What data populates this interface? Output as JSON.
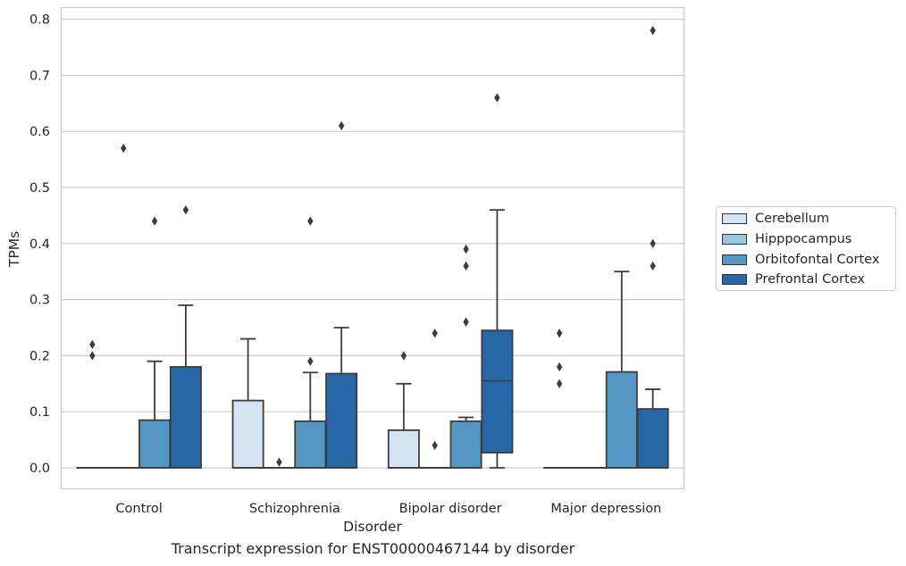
{
  "caption": "Transcript expression for ENST00000467144 by disorder",
  "chart_data": {
    "type": "box",
    "xlabel": "Disorder",
    "ylabel": "TPMs",
    "ylim": [
      -0.04,
      0.82
    ],
    "yticks": [
      0.0,
      0.1,
      0.2,
      0.3,
      0.4,
      0.5,
      0.6,
      0.7,
      0.8
    ],
    "ytick_labels": [
      "0.0",
      "0.1",
      "0.2",
      "0.3",
      "0.4",
      "0.5",
      "0.6",
      "0.7",
      "0.8"
    ],
    "grid": "horizontal",
    "legend_position": "right",
    "categories": [
      "Control",
      "Schizophrenia",
      "Bipolar disorder",
      "Major depression"
    ],
    "series": [
      {
        "name": "Cerebellum",
        "color": "#d6e5f4",
        "boxes": [
          {
            "q1": 0,
            "median": 0,
            "q3": 0,
            "whisker_low": 0,
            "whisker_high": 0,
            "outliers": [
              0.2,
              0.22
            ]
          },
          {
            "q1": 0,
            "median": 0,
            "q3": 0.12,
            "whisker_low": 0,
            "whisker_high": 0.23,
            "outliers": []
          },
          {
            "q1": 0,
            "median": 0,
            "q3": 0.067,
            "whisker_low": 0,
            "whisker_high": 0.15,
            "outliers": [
              0.2
            ]
          },
          {
            "q1": 0,
            "median": 0,
            "q3": 0,
            "whisker_low": 0,
            "whisker_high": 0,
            "outliers": [
              0.15,
              0.18,
              0.24
            ]
          }
        ]
      },
      {
        "name": "Hipppocampus",
        "color": "#9ac8e0",
        "boxes": [
          {
            "q1": 0,
            "median": 0,
            "q3": 0,
            "whisker_low": 0,
            "whisker_high": 0,
            "outliers": [
              0.57
            ]
          },
          {
            "q1": 0,
            "median": 0,
            "q3": 0,
            "whisker_low": 0,
            "whisker_high": 0,
            "outliers": [
              0.01
            ]
          },
          {
            "q1": 0,
            "median": 0,
            "q3": 0,
            "whisker_low": 0,
            "whisker_high": 0,
            "outliers": [
              0.04,
              0.24
            ]
          },
          {
            "q1": 0,
            "median": 0,
            "q3": 0,
            "whisker_low": 0,
            "whisker_high": 0,
            "outliers": []
          }
        ]
      },
      {
        "name": "Orbitofontal Cortex",
        "color": "#5496c4",
        "boxes": [
          {
            "q1": 0,
            "median": 0,
            "q3": 0.085,
            "whisker_low": 0,
            "whisker_high": 0.19,
            "outliers": [
              0.44
            ]
          },
          {
            "q1": 0,
            "median": 0,
            "q3": 0.083,
            "whisker_low": 0,
            "whisker_high": 0.17,
            "outliers": [
              0.19,
              0.44
            ]
          },
          {
            "q1": 0,
            "median": 0,
            "q3": 0.083,
            "whisker_low": 0,
            "whisker_high": 0.09,
            "outliers": [
              0.26,
              0.36,
              0.39
            ]
          },
          {
            "q1": 0,
            "median": 0,
            "q3": 0.171,
            "whisker_low": 0,
            "whisker_high": 0.35,
            "outliers": []
          }
        ]
      },
      {
        "name": "Prefrontal Cortex",
        "color": "#2767a8",
        "boxes": [
          {
            "q1": 0,
            "median": 0,
            "q3": 0.18,
            "whisker_low": 0,
            "whisker_high": 0.29,
            "outliers": [
              0.46
            ]
          },
          {
            "q1": 0,
            "median": 0,
            "q3": 0.168,
            "whisker_low": 0,
            "whisker_high": 0.25,
            "outliers": [
              0.61
            ]
          },
          {
            "q1": 0.027,
            "median": 0.155,
            "q3": 0.245,
            "whisker_low": 0,
            "whisker_high": 0.46,
            "outliers": [
              0.66
            ]
          },
          {
            "q1": 0,
            "median": 0,
            "q3": 0.105,
            "whisker_low": 0,
            "whisker_high": 0.14,
            "outliers": [
              0.36,
              0.4,
              0.78
            ]
          }
        ]
      }
    ]
  }
}
